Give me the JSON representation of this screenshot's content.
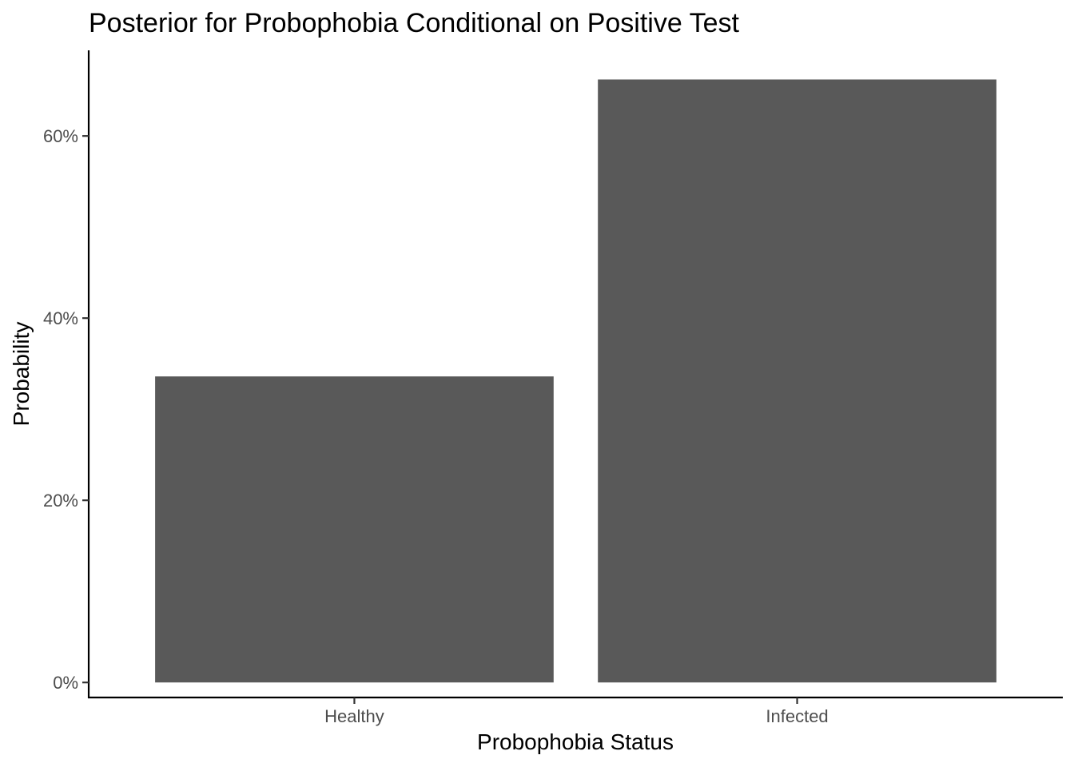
{
  "chart_data": {
    "type": "bar",
    "title": "Posterior for Probophobia Conditional on Positive Test",
    "xlabel": "Probophobia Status",
    "ylabel": "Probability",
    "categories": [
      "Healthy",
      "Infected"
    ],
    "values": [
      0.336,
      0.662
    ],
    "ylim": [
      -0.0165,
      0.694
    ],
    "yticks": [
      0,
      0.2,
      0.4,
      0.6
    ],
    "ytick_labels": [
      "0%",
      "20%",
      "40%",
      "60%"
    ],
    "grid": false,
    "legend": "none",
    "bar_color": "#595959"
  }
}
